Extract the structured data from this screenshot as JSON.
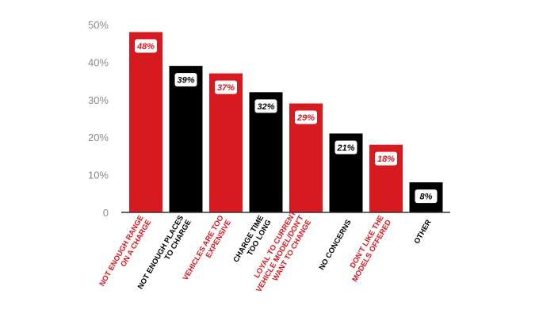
{
  "colors": {
    "red": "#d71920",
    "black": "#000000",
    "axis": "#333333",
    "grid_text": "#8a8a8a",
    "label_box": "#ffffff"
  },
  "chart_data": {
    "type": "bar",
    "title": "",
    "xlabel": "",
    "ylabel": "",
    "ylim": [
      0,
      50
    ],
    "grid": false,
    "y_ticks": [
      0,
      10,
      20,
      30,
      40,
      50
    ],
    "y_tick_labels": [
      "0",
      "10%",
      "20%",
      "30%",
      "40%",
      "50%"
    ],
    "categories": [
      [
        "NOT ENOUGH RANGE",
        "ON A CHARGE"
      ],
      [
        "NOT ENOUGH PLACES",
        "TO CHARGE"
      ],
      [
        "VEHICLES ARE TOO",
        "EXPENSIVE"
      ],
      [
        "CHARGE TIME",
        "TOO LONG"
      ],
      [
        "LOYAL TO CURRENT",
        "VEHICLE MODEL/DON'T",
        "WANT TO CHANGE"
      ],
      [
        "NO CONCERNS"
      ],
      [
        "DON'T LIKE THE",
        "MODELS OFFERED"
      ],
      [
        "OTHER"
      ]
    ],
    "values": [
      48,
      39,
      37,
      32,
      29,
      21,
      18,
      8
    ],
    "value_labels": [
      "48%",
      "39%",
      "37%",
      "32%",
      "29%",
      "21%",
      "18%",
      "8%"
    ],
    "bar_colors": [
      "red",
      "black",
      "red",
      "black",
      "red",
      "black",
      "red",
      "black"
    ]
  }
}
